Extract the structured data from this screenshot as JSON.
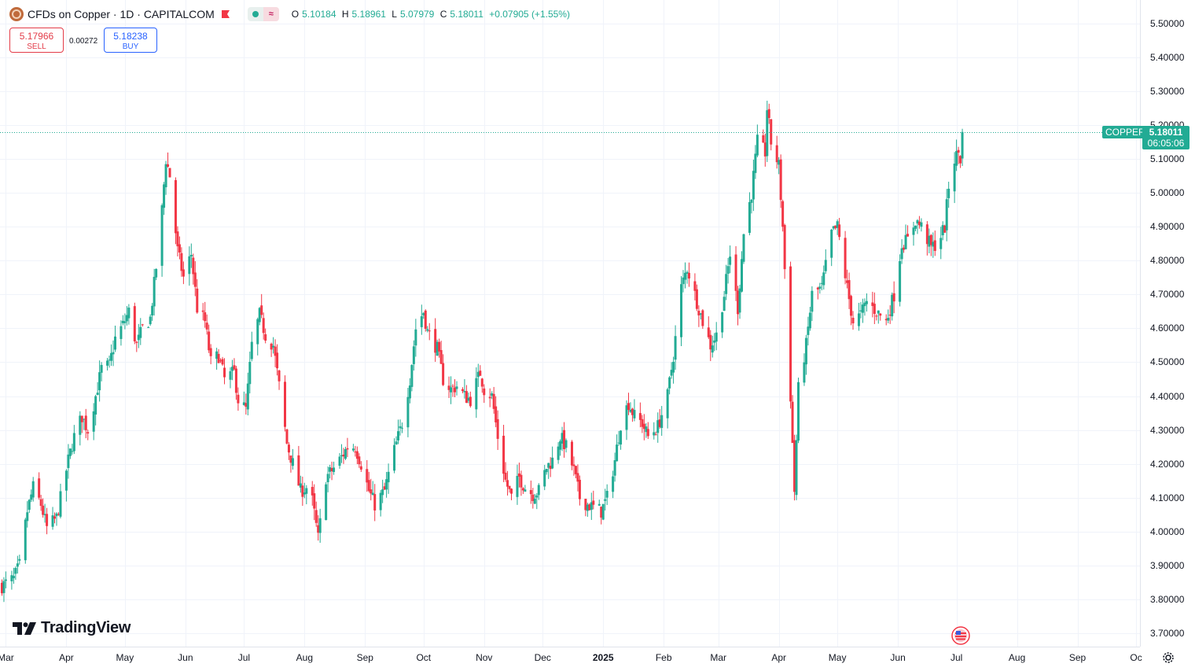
{
  "symbol": {
    "title": "CFDs on Copper · 1D · CAPITALCOM",
    "ticker": "COPPER",
    "icon": "copper-symbol-icon"
  },
  "ohlc": {
    "open": "5.10184",
    "high": "5.18961",
    "low": "5.07979",
    "close": "5.18011",
    "change": "+0.07905 (+1.55%)"
  },
  "trade": {
    "sell_price": "5.17966",
    "sell_label": "SELL",
    "buy_price": "5.18238",
    "buy_label": "BUY",
    "spread": "0.00272"
  },
  "last_price": {
    "value": "5.18011",
    "countdown": "06:05:06"
  },
  "branding": "TradingView",
  "colors": {
    "up": "#22ab94",
    "down": "#f23645",
    "grid": "#f0f3fa",
    "price_line": "#22ab94"
  },
  "chart_data": {
    "type": "candlestick",
    "title": "CFDs on Copper · 1D · CAPITALCOM",
    "xlabel": "",
    "ylabel": "",
    "ylim": [
      3.66,
      5.57
    ],
    "grid": true,
    "y_ticks": [
      "5.50000",
      "5.40000",
      "5.30000",
      "5.20000",
      "5.10000",
      "5.00000",
      "4.90000",
      "4.80000",
      "4.70000",
      "4.60000",
      "4.50000",
      "4.40000",
      "4.30000",
      "4.20000",
      "4.10000",
      "4.00000",
      "3.90000",
      "3.80000",
      "3.70000"
    ],
    "x_ticks": [
      {
        "label": "Mar",
        "date": "2024-03-01"
      },
      {
        "label": "Apr",
        "date": "2024-04-01"
      },
      {
        "label": "May",
        "date": "2024-05-01"
      },
      {
        "label": "Jun",
        "date": "2024-06-01"
      },
      {
        "label": "Jul",
        "date": "2024-07-01"
      },
      {
        "label": "Aug",
        "date": "2024-08-01"
      },
      {
        "label": "Sep",
        "date": "2024-09-01"
      },
      {
        "label": "Oct",
        "date": "2024-10-01"
      },
      {
        "label": "Nov",
        "date": "2024-11-01"
      },
      {
        "label": "Dec",
        "date": "2024-12-01"
      },
      {
        "label": "2025",
        "date": "2025-01-01",
        "bold": true
      },
      {
        "label": "Feb",
        "date": "2025-02-01"
      },
      {
        "label": "Mar",
        "date": "2025-03-01"
      },
      {
        "label": "Apr",
        "date": "2025-04-01"
      },
      {
        "label": "May",
        "date": "2025-05-01"
      },
      {
        "label": "Jun",
        "date": "2025-06-01"
      },
      {
        "label": "Jul",
        "date": "2025-07-01"
      },
      {
        "label": "Aug",
        "date": "2025-08-01"
      },
      {
        "label": "Sep",
        "date": "2025-09-01"
      },
      {
        "label": "Oc",
        "date": "2025-10-01"
      }
    ],
    "last_close": 5.18011,
    "close_path": [
      [
        "2024-02-28",
        3.84
      ],
      [
        "2024-03-05",
        3.86
      ],
      [
        "2024-03-08",
        3.9
      ],
      [
        "2024-03-12",
        4.06
      ],
      [
        "2024-03-15",
        4.13
      ],
      [
        "2024-03-19",
        4.08
      ],
      [
        "2024-03-22",
        4.01
      ],
      [
        "2024-03-27",
        4.04
      ],
      [
        "2024-04-02",
        4.21
      ],
      [
        "2024-04-05",
        4.28
      ],
      [
        "2024-04-09",
        4.34
      ],
      [
        "2024-04-12",
        4.3
      ],
      [
        "2024-04-16",
        4.4
      ],
      [
        "2024-04-19",
        4.48
      ],
      [
        "2024-04-23",
        4.49
      ],
      [
        "2024-04-26",
        4.57
      ],
      [
        "2024-04-30",
        4.61
      ],
      [
        "2024-05-03",
        4.65
      ],
      [
        "2024-05-07",
        4.55
      ],
      [
        "2024-05-10",
        4.6
      ],
      [
        "2024-05-14",
        4.63
      ],
      [
        "2024-05-17",
        4.78
      ],
      [
        "2024-05-20",
        4.95
      ],
      [
        "2024-05-22",
        5.1
      ],
      [
        "2024-05-24",
        5.05
      ],
      [
        "2024-05-28",
        4.83
      ],
      [
        "2024-05-31",
        4.75
      ],
      [
        "2024-06-04",
        4.82
      ],
      [
        "2024-06-07",
        4.66
      ],
      [
        "2024-06-11",
        4.62
      ],
      [
        "2024-06-14",
        4.5
      ],
      [
        "2024-06-18",
        4.52
      ],
      [
        "2024-06-21",
        4.45
      ],
      [
        "2024-06-26",
        4.47
      ],
      [
        "2024-06-28",
        4.39
      ],
      [
        "2024-07-02",
        4.36
      ],
      [
        "2024-07-05",
        4.55
      ],
      [
        "2024-07-09",
        4.64
      ],
      [
        "2024-07-12",
        4.58
      ],
      [
        "2024-07-16",
        4.55
      ],
      [
        "2024-07-19",
        4.43
      ],
      [
        "2024-07-23",
        4.26
      ],
      [
        "2024-07-26",
        4.2
      ],
      [
        "2024-07-30",
        4.12
      ],
      [
        "2024-08-02",
        4.13
      ],
      [
        "2024-08-05",
        4.09
      ],
      [
        "2024-08-08",
        3.98
      ],
      [
        "2024-08-12",
        4.16
      ],
      [
        "2024-08-15",
        4.18
      ],
      [
        "2024-08-20",
        4.22
      ],
      [
        "2024-08-23",
        4.25
      ],
      [
        "2024-08-27",
        4.25
      ],
      [
        "2024-08-30",
        4.2
      ],
      [
        "2024-09-03",
        4.12
      ],
      [
        "2024-09-06",
        4.08
      ],
      [
        "2024-09-11",
        4.12
      ],
      [
        "2024-09-16",
        4.24
      ],
      [
        "2024-09-20",
        4.32
      ],
      [
        "2024-09-24",
        4.45
      ],
      [
        "2024-09-27",
        4.6
      ],
      [
        "2024-10-01",
        4.65
      ],
      [
        "2024-10-03",
        4.59
      ],
      [
        "2024-10-08",
        4.54
      ],
      [
        "2024-10-11",
        4.45
      ],
      [
        "2024-10-15",
        4.42
      ],
      [
        "2024-10-18",
        4.43
      ],
      [
        "2024-10-22",
        4.4
      ],
      [
        "2024-10-25",
        4.39
      ],
      [
        "2024-10-30",
        4.47
      ],
      [
        "2024-11-01",
        4.42
      ],
      [
        "2024-11-05",
        4.4
      ],
      [
        "2024-11-08",
        4.28
      ],
      [
        "2024-11-12",
        4.15
      ],
      [
        "2024-11-15",
        4.1
      ],
      [
        "2024-11-19",
        4.16
      ],
      [
        "2024-11-22",
        4.13
      ],
      [
        "2024-11-26",
        4.11
      ],
      [
        "2024-11-29",
        4.12
      ],
      [
        "2024-12-03",
        4.19
      ],
      [
        "2024-12-06",
        4.21
      ],
      [
        "2024-12-10",
        4.28
      ],
      [
        "2024-12-13",
        4.25
      ],
      [
        "2024-12-17",
        4.18
      ],
      [
        "2024-12-20",
        4.1
      ],
      [
        "2024-12-24",
        4.08
      ],
      [
        "2024-12-31",
        4.06
      ],
      [
        "2025-01-03",
        4.1
      ],
      [
        "2025-01-07",
        4.21
      ],
      [
        "2025-01-10",
        4.32
      ],
      [
        "2025-01-14",
        4.38
      ],
      [
        "2025-01-17",
        4.34
      ],
      [
        "2025-01-21",
        4.32
      ],
      [
        "2025-01-24",
        4.28
      ],
      [
        "2025-01-29",
        4.31
      ],
      [
        "2025-02-03",
        4.4
      ],
      [
        "2025-02-06",
        4.52
      ],
      [
        "2025-02-10",
        4.72
      ],
      [
        "2025-02-13",
        4.78
      ],
      [
        "2025-02-18",
        4.68
      ],
      [
        "2025-02-21",
        4.62
      ],
      [
        "2025-02-25",
        4.55
      ],
      [
        "2025-02-28",
        4.58
      ],
      [
        "2025-03-04",
        4.7
      ],
      [
        "2025-03-07",
        4.82
      ],
      [
        "2025-03-11",
        4.66
      ],
      [
        "2025-03-14",
        4.88
      ],
      [
        "2025-03-18",
        5.0
      ],
      [
        "2025-03-21",
        5.15
      ],
      [
        "2025-03-25",
        5.12
      ],
      [
        "2025-03-26",
        5.25
      ],
      [
        "2025-03-28",
        5.15
      ],
      [
        "2025-04-01",
        5.08
      ],
      [
        "2025-04-03",
        4.9
      ],
      [
        "2025-04-07",
        4.4
      ],
      [
        "2025-04-09",
        4.12
      ],
      [
        "2025-04-11",
        4.42
      ],
      [
        "2025-04-15",
        4.55
      ],
      [
        "2025-04-18",
        4.7
      ],
      [
        "2025-04-23",
        4.72
      ],
      [
        "2025-04-28",
        4.88
      ],
      [
        "2025-05-01",
        4.9
      ],
      [
        "2025-05-06",
        4.72
      ],
      [
        "2025-05-09",
        4.62
      ],
      [
        "2025-05-13",
        4.64
      ],
      [
        "2025-05-16",
        4.68
      ],
      [
        "2025-05-21",
        4.65
      ],
      [
        "2025-05-26",
        4.62
      ],
      [
        "2025-05-30",
        4.7
      ],
      [
        "2025-06-03",
        4.85
      ],
      [
        "2025-06-06",
        4.86
      ],
      [
        "2025-06-10",
        4.92
      ],
      [
        "2025-06-13",
        4.9
      ],
      [
        "2025-06-18",
        4.84
      ],
      [
        "2025-06-21",
        4.85
      ],
      [
        "2025-06-25",
        4.9
      ],
      [
        "2025-06-28",
        5.08
      ],
      [
        "2025-07-02",
        5.12
      ],
      [
        "2025-07-03",
        5.1
      ],
      [
        "2025-07-04",
        5.18011
      ]
    ]
  }
}
